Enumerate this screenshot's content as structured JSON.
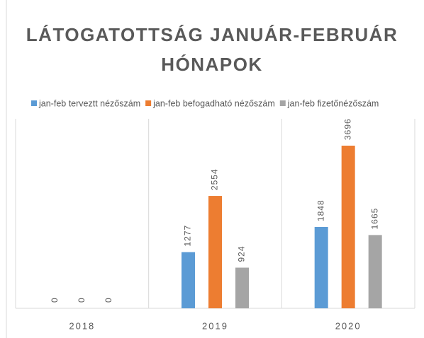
{
  "chart_data": {
    "type": "bar",
    "title": "LÁTOGATOTTSÁG JANUÁR-FEBRUÁR HÓNAPOK",
    "categories": [
      "2018",
      "2019",
      "2020"
    ],
    "series": [
      {
        "name": "jan-feb terveztt nézőszám",
        "color": "#5b9bd5",
        "values": [
          0,
          1277,
          1848
        ]
      },
      {
        "name": "jan-feb befogadható nézőszám",
        "color": "#ed7d31",
        "values": [
          0,
          2554,
          3696
        ]
      },
      {
        "name": "jan-feb fizetőnézőszám",
        "color": "#a5a5a5",
        "values": [
          0,
          924,
          1665
        ]
      }
    ],
    "legend": "top",
    "grid": "vertical"
  }
}
